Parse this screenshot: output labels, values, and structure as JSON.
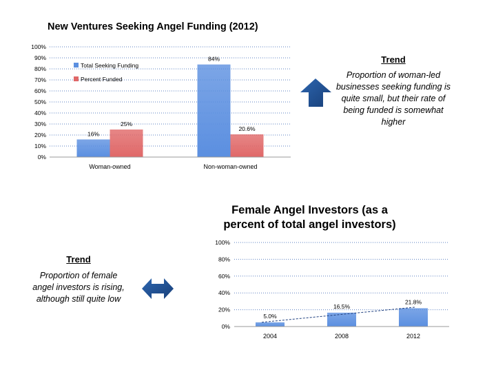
{
  "charts": {
    "top": {
      "title": "New Ventures Seeking Angel Funding (2012)",
      "y_ticks": [
        "0%",
        "10%",
        "20%",
        "30%",
        "40%",
        "50%",
        "60%",
        "70%",
        "80%",
        "90%",
        "100%"
      ],
      "legend": [
        "Total Seeking Funding",
        "Percent Funded"
      ]
    },
    "bottom": {
      "title": "Female Angel Investors (as a percent of total angel investors)",
      "y_ticks": [
        "0%",
        "20%",
        "40%",
        "60%",
        "80%",
        "100%"
      ]
    }
  },
  "trend1": {
    "title": "Trend",
    "text": "Proportion of woman-led businesses seeking funding is quite small, but their rate of being funded is somewhat higher",
    "icon": "arrow-up-icon"
  },
  "trend2": {
    "title": "Trend",
    "text": "Proportion of female angel investors is rising, although still quite low",
    "icon": "arrow-left-right-icon"
  },
  "colors": {
    "blue": "#5b8fe0",
    "red": "#e06868",
    "arrow": "#1f4f8f",
    "grid": "#5a7fc0"
  },
  "chart_data": [
    {
      "type": "bar",
      "title": "New Ventures Seeking Angel Funding (2012)",
      "categories": [
        "Woman-owned",
        "Non-woman-owned"
      ],
      "series": [
        {
          "name": "Total Seeking Funding",
          "values": [
            16,
            84
          ],
          "labels": [
            "16%",
            "84%"
          ],
          "color": "#5b8fe0"
        },
        {
          "name": "Percent Funded",
          "values": [
            25,
            20.6
          ],
          "labels": [
            "25%",
            "20.6%"
          ],
          "color": "#e06868"
        }
      ],
      "ylim": [
        0,
        100
      ],
      "y_ticks": [
        "0%",
        "10%",
        "20%",
        "30%",
        "40%",
        "50%",
        "60%",
        "70%",
        "80%",
        "90%",
        "100%"
      ],
      "grid": true,
      "legend": "top-left"
    },
    {
      "type": "bar",
      "title": "Female Angel Investors (as a percent of total angel investors)",
      "categories": [
        "2004",
        "2008",
        "2012"
      ],
      "series": [
        {
          "values": [
            5.0,
            16.5,
            21.8
          ],
          "labels": [
            "5.0%",
            "16.5%",
            "21.8%"
          ],
          "color": "#5b8fe0"
        }
      ],
      "ylim": [
        0,
        100
      ],
      "y_ticks": [
        "0%",
        "20%",
        "40%",
        "60%",
        "80%",
        "100%"
      ],
      "grid": true,
      "trendline": "linear"
    }
  ]
}
